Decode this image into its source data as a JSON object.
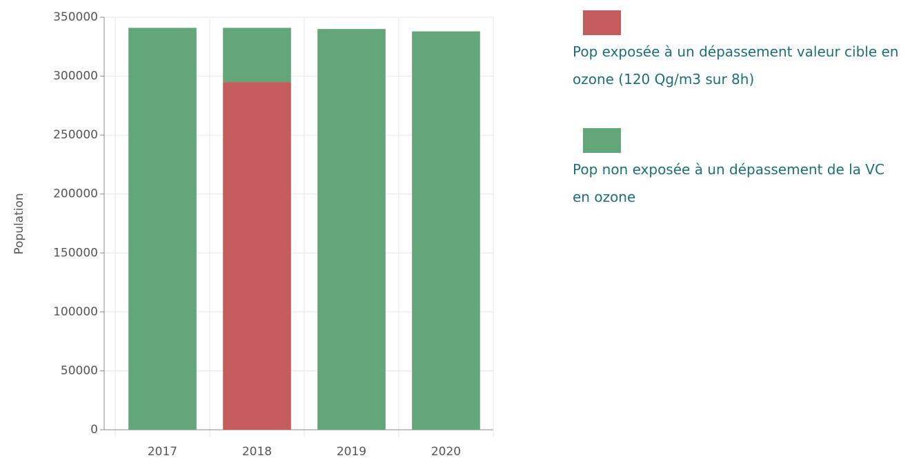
{
  "chart_data": {
    "type": "stacked_bar",
    "categories": [
      "2017",
      "2018",
      "2019",
      "2020"
    ],
    "series": [
      {
        "name": "Pop exposée à un dépassement valeur cible en ozone (120 Qg/m3 sur 8h)",
        "color": "#c65b5b",
        "values": [
          0,
          295000,
          0,
          0
        ]
      },
      {
        "name": "Pop non exposée à un dépassement de la VC en ozone",
        "color": "#62a67a",
        "values": [
          341000,
          46000,
          340000,
          338000
        ]
      }
    ],
    "y_label": "Population",
    "ylim": [
      0,
      350000
    ],
    "yticks": [
      0,
      50000,
      100000,
      150000,
      200000,
      250000,
      300000,
      350000
    ],
    "grid": true
  }
}
